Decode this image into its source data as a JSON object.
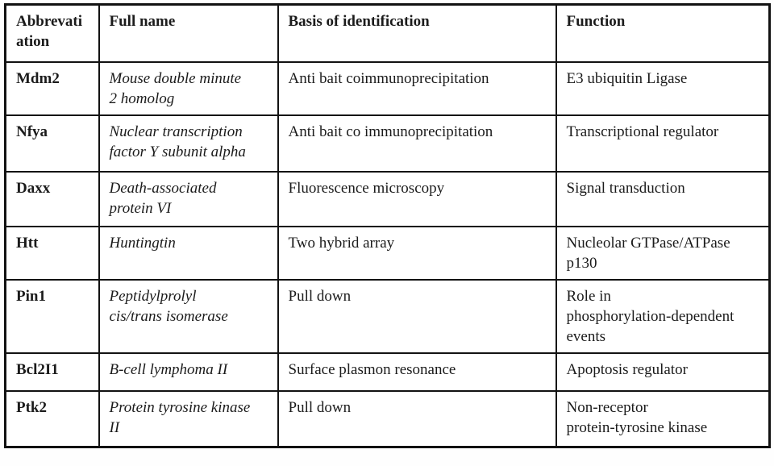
{
  "document": {
    "type": "protein-interaction-table",
    "colors": {
      "text": "#1b1b1b",
      "border": "#121212",
      "background": "#ffffff"
    }
  },
  "table": {
    "headers": {
      "abbreviation": "Abbrevati\nation",
      "full_name": "Full name",
      "basis": "Basis of identification",
      "function": "Function"
    },
    "rows": [
      {
        "abbr": "Mdm2",
        "full_name": "Mouse double minute\n2 homolog",
        "basis": "Anti bait coimmunoprecipitation",
        "function": "E3 ubiquitin Ligase"
      },
      {
        "abbr": "Nfya",
        "full_name": "Nuclear transcription\nfactor Y subunit alpha",
        "basis": "Anti bait co immunoprecipitation",
        "function": "Transcriptional regulator"
      },
      {
        "abbr": "Daxx",
        "full_name": "Death-associated\nprotein VI",
        "basis": "Fluorescence microscopy",
        "function": "Signal transduction"
      },
      {
        "abbr": "Htt",
        "full_name": "Huntingtin",
        "basis": "Two hybrid array",
        "function": "Nucleolar GTPase/ATPase\np130"
      },
      {
        "abbr": "Pin1",
        "full_name": "Peptidylprolyl\ncis/trans isomerase",
        "basis": "Pull down",
        "function": "Role in\nphosphorylation-dependent\nevents"
      },
      {
        "abbr": "Bcl2I1",
        "full_name": "B-cell lymphoma II",
        "basis": "Surface plasmon resonance",
        "function": "Apoptosis regulator"
      },
      {
        "abbr": "Ptk2",
        "full_name": "Protein tyrosine kinase\nII",
        "basis": "Pull down",
        "function": "Non-receptor\nprotein-tyrosine kinase"
      }
    ]
  }
}
